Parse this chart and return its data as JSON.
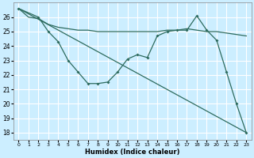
{
  "xlabel": "Humidex (Indice chaleur)",
  "bg_color": "#cceeff",
  "line_color": "#2d6b5e",
  "grid_color": "#ffffff",
  "xlim": [
    -0.5,
    23.5
  ],
  "ylim": [
    17.5,
    27.0
  ],
  "yticks": [
    18,
    19,
    20,
    21,
    22,
    23,
    24,
    25,
    26
  ],
  "xticks": [
    0,
    1,
    2,
    3,
    4,
    5,
    6,
    7,
    8,
    9,
    10,
    11,
    12,
    13,
    14,
    15,
    16,
    17,
    18,
    19,
    20,
    21,
    22,
    23
  ],
  "line1_x": [
    0,
    1,
    2,
    3,
    4,
    5,
    6,
    7,
    8,
    9,
    10,
    11,
    12,
    13,
    14,
    15,
    16,
    17,
    18,
    19,
    20,
    21,
    22,
    23
  ],
  "line1_y": [
    26.6,
    26.0,
    25.9,
    25.5,
    25.3,
    25.2,
    25.1,
    25.1,
    25.0,
    25.0,
    25.0,
    25.0,
    25.0,
    25.0,
    25.0,
    25.1,
    25.1,
    25.2,
    25.1,
    25.0,
    25.0,
    24.9,
    24.8,
    24.7
  ],
  "line2_x": [
    0,
    2,
    3,
    4,
    5,
    6,
    7,
    8,
    9,
    10,
    11,
    12,
    13,
    14,
    15,
    16,
    17,
    18,
    19,
    20,
    21,
    22,
    23
  ],
  "line2_y": [
    26.6,
    26.0,
    25.0,
    24.3,
    23.0,
    22.2,
    21.4,
    21.4,
    21.5,
    22.2,
    23.1,
    23.4,
    23.2,
    24.7,
    25.0,
    25.1,
    25.1,
    26.1,
    25.1,
    24.4,
    22.2,
    20.0,
    18.0
  ],
  "line3_x": [
    0,
    23
  ],
  "line3_y": [
    26.6,
    18.0
  ]
}
